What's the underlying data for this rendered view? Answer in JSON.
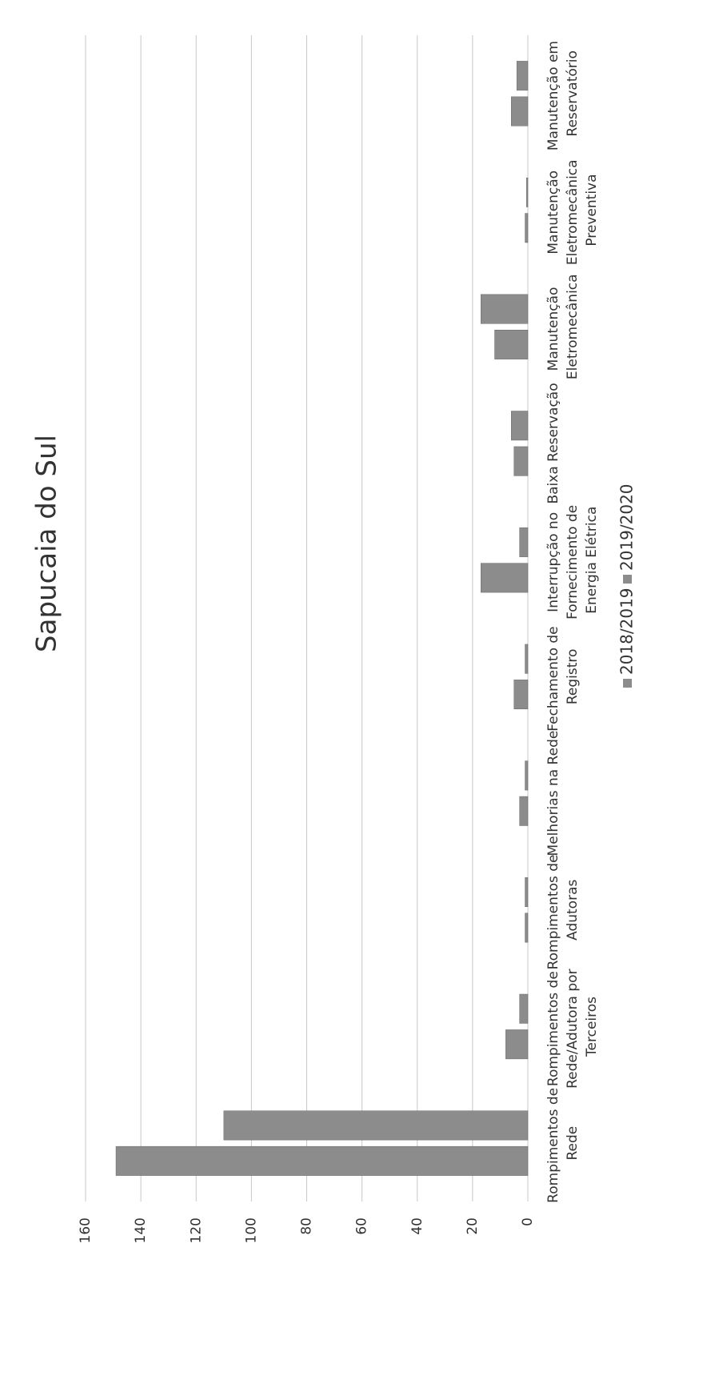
{
  "chart_data": {
    "type": "bar",
    "title": "Sapucaia do Sul",
    "categories": [
      "Rompimentos de Rede",
      "Rompimentos de Rede/Adutora por Terceiros",
      "Rompimentos de Adutoras",
      "Melhorias na Rede",
      "Fechamento de Registro",
      "Interrupção no Fornecimento de Energia Elétrica",
      "Baixa Reservação",
      "Manutenção Eletromecânica",
      "Manutenção Eletromecânica Preventiva",
      "Manutenção em Reservatório"
    ],
    "series": [
      {
        "name": "2018/2019",
        "color": "#8c8c8c",
        "values": [
          149,
          8,
          1,
          3,
          5,
          17,
          5,
          12,
          1,
          6
        ]
      },
      {
        "name": "2019/2020",
        "color": "#8c8c8c",
        "values": [
          110,
          3,
          1,
          1,
          1,
          3,
          6,
          17,
          0.5,
          4
        ]
      }
    ],
    "ylim": [
      0,
      160
    ],
    "yticks": [
      0,
      20,
      40,
      60,
      80,
      100,
      120,
      140,
      160
    ],
    "grid": true,
    "legend": "bottom"
  }
}
